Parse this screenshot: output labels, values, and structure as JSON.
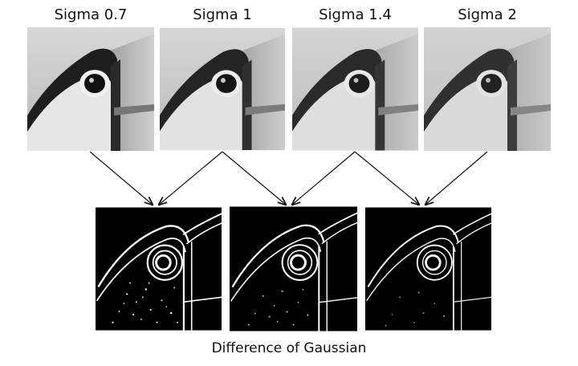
{
  "sigma_labels": [
    "Sigma 0.7",
    "Sigma 1",
    "Sigma 1.4",
    "Sigma 2"
  ],
  "caption": "Difference of Gaussian",
  "colors": {
    "background": "#ffffff",
    "arrow": "#111111",
    "dog_background": "#000000",
    "dog_edges": "#ffffff"
  }
}
